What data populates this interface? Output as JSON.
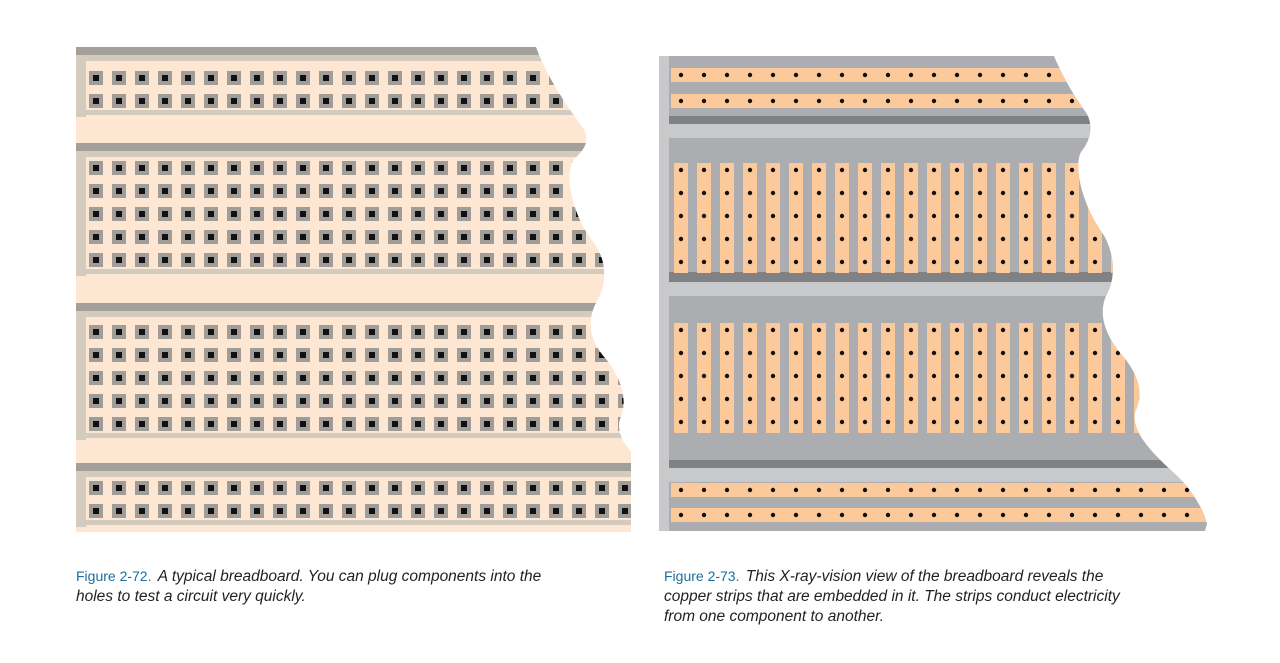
{
  "figures": [
    {
      "id": "left",
      "label": "Figure 2-72.",
      "caption": "A typical breadboard. You can plug components into the holes to test a circuit very quickly.",
      "colors": {
        "board": "#fde7d3",
        "frame": "#d3cbbd",
        "frame_dark": "#a39f99",
        "hole_outer": "#a09d98",
        "hole_inner": "#111111"
      }
    },
    {
      "id": "right",
      "label": "Figure 2-73.",
      "caption": "This X-ray-vision view of the breadboard reveals the copper strips that are embedded in it. The strips conduct electricity from one component to another.",
      "colors": {
        "board": "#abadb0",
        "frame": "#c7c9cb",
        "frame_dark": "#7f8184",
        "strip": "#fcc99b",
        "dot": "#111111"
      }
    }
  ]
}
